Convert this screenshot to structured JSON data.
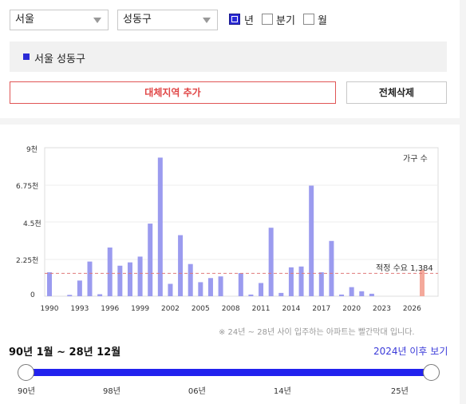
{
  "filters": {
    "region": "서울",
    "district": "성동구",
    "period_options": [
      {
        "label": "년",
        "checked": true
      },
      {
        "label": "분기",
        "checked": false
      },
      {
        "label": "월",
        "checked": false
      }
    ]
  },
  "selected_region": {
    "label": "서울 성동구",
    "color": "#2b2bd6"
  },
  "actions": {
    "add_alt_region": "대체지역 추가",
    "delete_all": "전체삭제"
  },
  "chart_data": {
    "type": "bar",
    "y_ticks": [
      "9천",
      "6.75천",
      "4.5천",
      "2.25천",
      "0"
    ],
    "ylim": [
      0,
      9000
    ],
    "x_tick_labels": [
      "1990",
      "1993",
      "1996",
      "1999",
      "2002",
      "2005",
      "2008",
      "2011",
      "2014",
      "2017",
      "2020",
      "2023",
      "2026"
    ],
    "legend": "가구 수",
    "reference_line": {
      "label": "적정 수요 1,384",
      "value": 1384
    },
    "series": [
      {
        "values": [
          {
            "x": 1990,
            "y": 1450
          },
          {
            "x": 1992,
            "y": 80
          },
          {
            "x": 1993,
            "y": 950
          },
          {
            "x": 1994,
            "y": 2100
          },
          {
            "x": 1995,
            "y": 120
          },
          {
            "x": 1996,
            "y": 2950
          },
          {
            "x": 1997,
            "y": 1850
          },
          {
            "x": 1998,
            "y": 2050
          },
          {
            "x": 1999,
            "y": 2400
          },
          {
            "x": 2000,
            "y": 4400
          },
          {
            "x": 2001,
            "y": 8400
          },
          {
            "x": 2002,
            "y": 750
          },
          {
            "x": 2003,
            "y": 3700
          },
          {
            "x": 2004,
            "y": 1950
          },
          {
            "x": 2005,
            "y": 850
          },
          {
            "x": 2006,
            "y": 1100
          },
          {
            "x": 2007,
            "y": 1200
          },
          {
            "x": 2009,
            "y": 1400
          },
          {
            "x": 2010,
            "y": 100
          },
          {
            "x": 2011,
            "y": 800
          },
          {
            "x": 2012,
            "y": 4150
          },
          {
            "x": 2013,
            "y": 200
          },
          {
            "x": 2014,
            "y": 1750
          },
          {
            "x": 2015,
            "y": 1800
          },
          {
            "x": 2016,
            "y": 6700
          },
          {
            "x": 2017,
            "y": 1450
          },
          {
            "x": 2018,
            "y": 3350
          },
          {
            "x": 2019,
            "y": 100
          },
          {
            "x": 2020,
            "y": 550
          },
          {
            "x": 2021,
            "y": 300
          },
          {
            "x": 2022,
            "y": 150
          },
          {
            "x": 2027,
            "y": 1600,
            "highlight": true
          }
        ]
      }
    ],
    "colors": {
      "bar": "#9b9bef",
      "bar_future": "#f4a99b",
      "ref_line": "#e07a7a"
    }
  },
  "note": "※ 24년 ~ 28년 사이 입주하는 아파트는 빨간막대 입니다.",
  "range": {
    "label": "90년 1월 ~ 28년 12월",
    "link": "2024년 이후 보기",
    "ticks": [
      "90년",
      "98년",
      "06년",
      "14년",
      "25년"
    ],
    "start": 1990,
    "end": 2028,
    "selected_from": 1990,
    "selected_to": 2028
  }
}
